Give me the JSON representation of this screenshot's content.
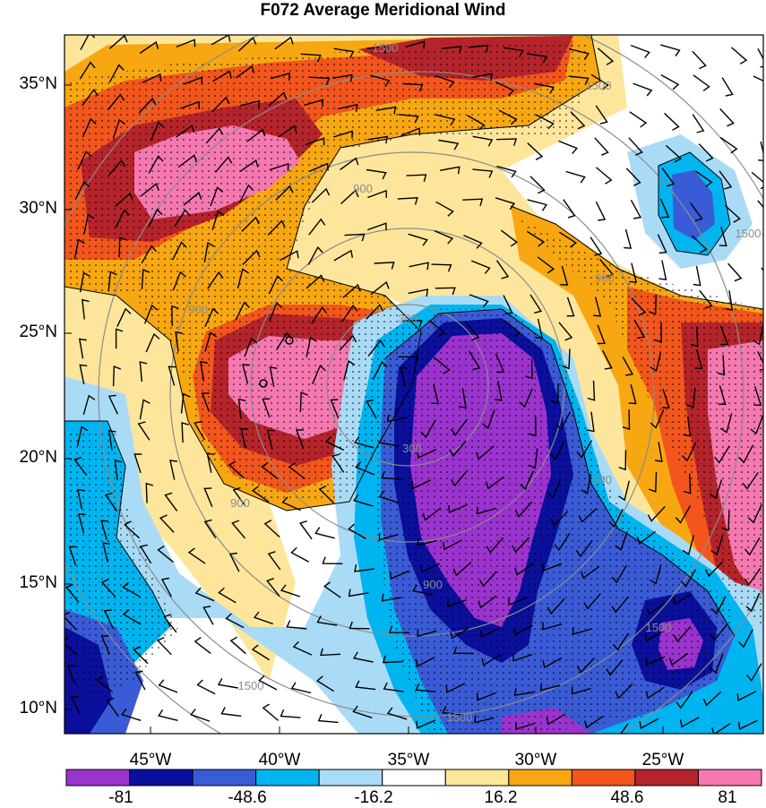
{
  "title": "F072 Average Meridional Wind",
  "map": {
    "lat_labels": [
      "35°N",
      "30°N",
      "25°N",
      "20°N",
      "15°N",
      "10°N"
    ],
    "lon_labels": [
      "45°W",
      "40°W",
      "35°W",
      "30°W",
      "25°W"
    ],
    "contour_labels": [
      "1500",
      "1500",
      "1500",
      "900",
      "900",
      "900",
      "900",
      "900",
      "300",
      "300",
      "900",
      "1500",
      "1500",
      "1500"
    ],
    "shading_levels": [
      -81,
      -64.8,
      -48.6,
      -32.4,
      -16.2,
      0,
      16.2,
      32.4,
      48.6,
      64.8,
      81
    ]
  },
  "colorbar": {
    "labels": [
      "-81",
      "-48.6",
      "-16.2",
      "16.2",
      "48.6",
      "81"
    ],
    "colors": [
      "#9b33cf",
      "#0a0f9c",
      "#3a5bd6",
      "#00b4f0",
      "#a9dbf7",
      "#ffffff",
      "#fde69b",
      "#f7a712",
      "#f2561c",
      "#b5242b",
      "#f579b0"
    ]
  }
}
